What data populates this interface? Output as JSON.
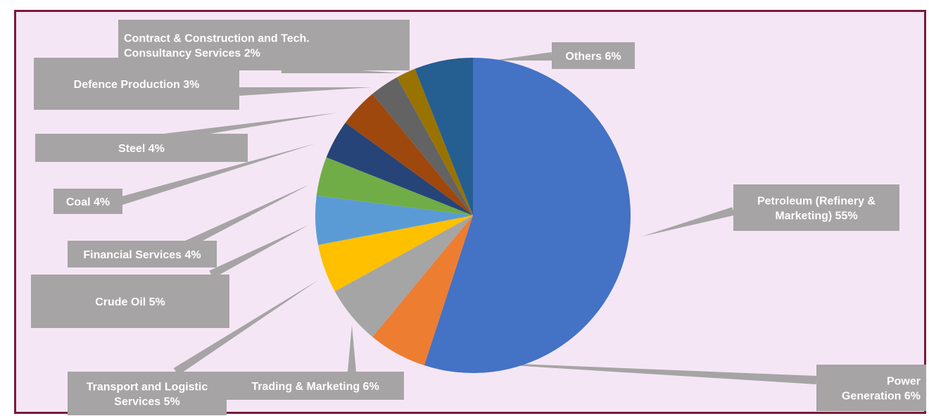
{
  "chart_data": {
    "type": "pie",
    "title": "",
    "slices": [
      {
        "label": "Petroleum (Refinery & Marketing)",
        "display": [
          "Petroleum (Refinery &",
          "Marketing) 55%"
        ],
        "value": 55,
        "color": "#4472c4"
      },
      {
        "label": "Power Generation",
        "display": [
          "Power",
          "Generation 6%"
        ],
        "value": 6,
        "color": "#ed7d31"
      },
      {
        "label": "Trading & Marketing",
        "display": [
          "Trading & Marketing 6%"
        ],
        "value": 6,
        "color": "#a5a5a5"
      },
      {
        "label": "Transport and Logistic Services",
        "display": [
          "Transport and Logistic",
          "Services 5%"
        ],
        "value": 5,
        "color": "#ffc000"
      },
      {
        "label": "Crude Oil",
        "display": [
          "Crude Oil 5%"
        ],
        "value": 5,
        "color": "#5b9bd5"
      },
      {
        "label": "Financial Services",
        "display": [
          "Financial Services 4%"
        ],
        "value": 4,
        "color": "#70ad47"
      },
      {
        "label": "Coal",
        "display": [
          "Coal 4%"
        ],
        "value": 4,
        "color": "#264478"
      },
      {
        "label": "Steel",
        "display": [
          "Steel 4%"
        ],
        "value": 4,
        "color": "#9e480e"
      },
      {
        "label": "Defence Production",
        "display": [
          "Defence Production 3%"
        ],
        "value": 3,
        "color": "#636363"
      },
      {
        "label": "Contract & Construction and Tech. Consultancy Services",
        "display": [
          "Contract & Construction and Tech.",
          "Consultancy Services 2%"
        ],
        "value": 2,
        "color": "#997300"
      },
      {
        "label": "Others",
        "display": [
          "Others 6%"
        ],
        "value": 6,
        "color": "#255e91"
      }
    ]
  },
  "colors": {
    "frame_border": "#7a1a3a",
    "plot_background": "#f5e6f5",
    "label_box": "#a6a4a5"
  }
}
